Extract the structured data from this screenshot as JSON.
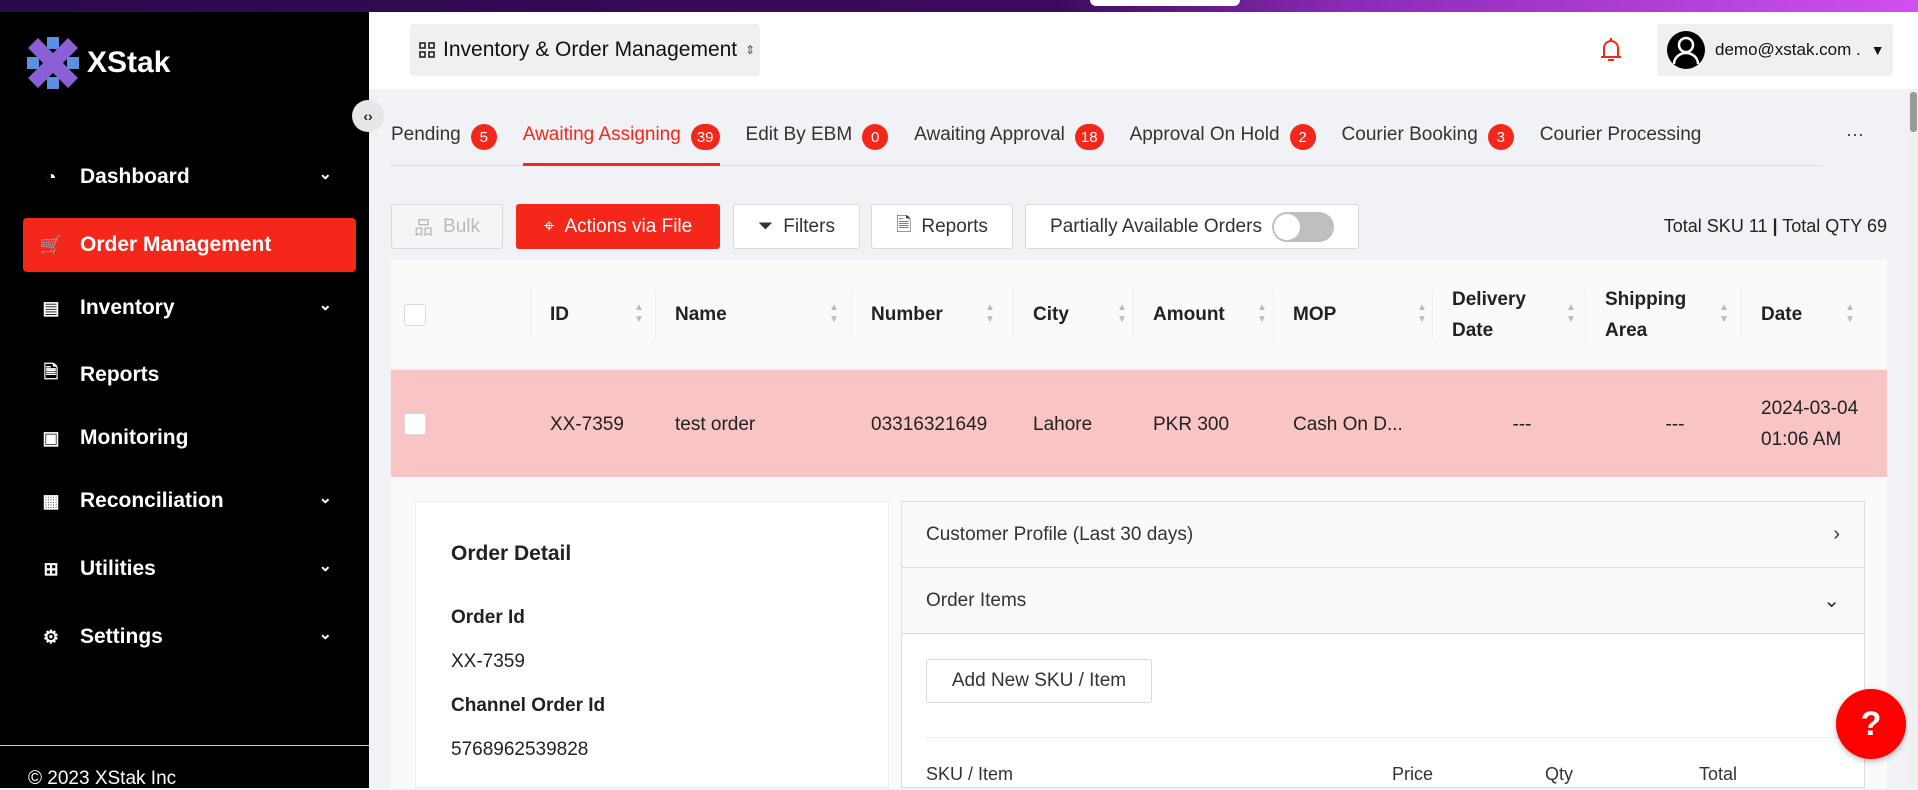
{
  "brand": {
    "name": "XStak",
    "accent": "#f5271a"
  },
  "sidebar": {
    "items": [
      {
        "label": "Dashboard",
        "icon": "gauge-icon",
        "has_chevron": true
      },
      {
        "label": "Order Management",
        "icon": "cart-icon",
        "active": true
      },
      {
        "label": "Inventory",
        "icon": "store-icon",
        "has_chevron": true
      },
      {
        "label": "Reports",
        "icon": "document-icon"
      },
      {
        "label": "Monitoring",
        "icon": "monitoring-icon"
      },
      {
        "label": "Reconciliation",
        "icon": "reconciliation-icon",
        "has_chevron": true
      },
      {
        "label": "Utilities",
        "icon": "sliders-icon",
        "has_chevron": true
      },
      {
        "label": "Settings",
        "icon": "gear-icon",
        "has_chevron": true
      }
    ],
    "copyright": "© 2023 XStak Inc"
  },
  "header": {
    "app_selector": "Inventory & Order Management",
    "user_email": "demo@xstak.com ."
  },
  "tabs": [
    {
      "label": "Pending",
      "count": "5"
    },
    {
      "label": "Awaiting Assigning",
      "count": "39",
      "active": true
    },
    {
      "label": "Edit By EBM",
      "count": "0"
    },
    {
      "label": "Awaiting Approval",
      "count": "18"
    },
    {
      "label": "Approval On Hold",
      "count": "2"
    },
    {
      "label": "Courier Booking",
      "count": "3"
    },
    {
      "label": "Courier Processing"
    }
  ],
  "more_tabs": "···",
  "toolbar": {
    "bulk": "Bulk",
    "actions_via_file": "Actions via File",
    "filters": "Filters",
    "reports": "Reports",
    "partially_available": "Partially Available Orders",
    "partially_available_on": false,
    "total_sku": "Total SKU 11",
    "total_qty": "Total QTY 69",
    "sep": "|"
  },
  "table": {
    "columns": [
      "ID",
      "Name",
      "Number",
      "City",
      "Amount",
      "MOP",
      "Delivery Date",
      "Shipping Area",
      "Date"
    ],
    "rows": [
      {
        "id": "XX-7359",
        "name": "test order",
        "number": "03316321649",
        "city": "Lahore",
        "amount": "PKR 300",
        "mop": "Cash On D...",
        "delivery_date": "---",
        "shipping_area": "---",
        "date": "2024-03-04 01:06 AM"
      }
    ]
  },
  "order_detail": {
    "title": "Order Detail",
    "order_id_label": "Order Id",
    "order_id": "XX-7359",
    "channel_order_id_label": "Channel Order Id",
    "channel_order_id": "5768962539828"
  },
  "panel": {
    "customer_profile": "Customer Profile (Last 30 days)",
    "order_items": "Order Items",
    "add_sku": "Add New SKU / Item",
    "item_columns": [
      "SKU / Item",
      "Price",
      "Qty",
      "Total"
    ]
  },
  "help": "?"
}
